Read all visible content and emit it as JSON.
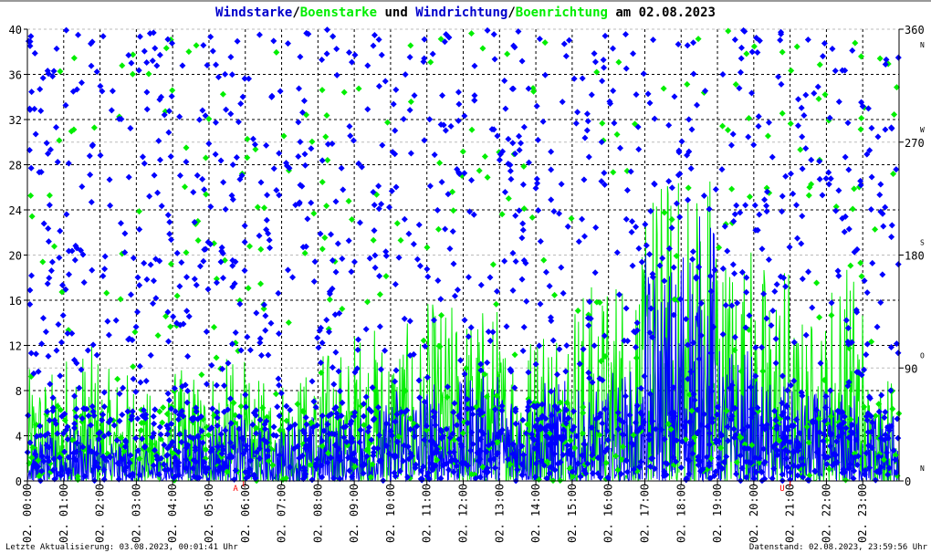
{
  "chart_data": {
    "type": "line",
    "title_parts": [
      {
        "text": "Windstarke",
        "color": "#0000cc"
      },
      {
        "text": "/",
        "color": "#000000"
      },
      {
        "text": "Boenstarke",
        "color": "#00ee00"
      },
      {
        "text": " und ",
        "color": "#000000"
      },
      {
        "text": "Windrichtung",
        "color": "#0000cc"
      },
      {
        "text": "/",
        "color": "#000000"
      },
      {
        "text": "Boenrichtung",
        "color": "#00ee00"
      },
      {
        "text": " am 02.08.2023",
        "color": "#000000"
      }
    ],
    "left_axis": {
      "ylim": [
        0,
        40
      ],
      "ticks": [
        "0",
        "4",
        "8",
        "12",
        "16",
        "20",
        "24",
        "28",
        "32",
        "36",
        "40"
      ]
    },
    "right_axis": {
      "ylim": [
        0,
        360
      ],
      "ticks": [
        "0",
        "90",
        "180",
        "270",
        "360"
      ],
      "compass": [
        "N",
        "O",
        "S",
        "W",
        "N"
      ]
    },
    "x_ticks": [
      "02. 00:00",
      "02. 01:00",
      "02. 02:00",
      "02. 03:00",
      "02. 04:00",
      "02. 05:00",
      "02. 06:00",
      "02. 07:00",
      "02. 08:00",
      "02. 09:00",
      "02. 10:00",
      "02. 11:00",
      "02. 12:00",
      "02. 13:00",
      "02. 14:00",
      "02. 15:00",
      "02. 16:00",
      "02. 17:00",
      "02. 18:00",
      "02. 19:00",
      "02. 20:00",
      "02. 21:00",
      "02. 22:00",
      "02. 23:00"
    ],
    "grid": true,
    "series": [
      {
        "name": "Windstarke",
        "color": "#0000ff",
        "hourly_max": [
          4,
          5,
          4,
          3,
          5,
          6,
          5,
          6,
          6,
          7,
          9,
          9,
          10,
          9,
          9,
          8,
          10,
          20,
          24,
          12,
          9,
          8,
          8,
          7
        ]
      },
      {
        "name": "Boenstarke",
        "color": "#00ee00",
        "hourly_max": [
          10,
          12,
          10,
          8,
          10,
          11,
          9,
          10,
          12,
          14,
          14,
          16,
          16,
          14,
          16,
          18,
          20,
          28,
          30,
          22,
          20,
          15,
          20,
          10
        ]
      },
      {
        "name": "Windrichtung",
        "color": "#0000ff",
        "unit": "deg",
        "type": "scatter"
      },
      {
        "name": "Boenrichtung",
        "color": "#00ee00",
        "unit": "deg",
        "type": "scatter"
      }
    ],
    "markers": [
      {
        "label": "A",
        "time": "05:57",
        "color": "#ff0000"
      },
      {
        "label": "U",
        "time": "21:00",
        "color": "#ff0000"
      }
    ]
  },
  "footer": {
    "left": "Letzte Aktualisierung: 03.08.2023, 00:01:41 Uhr",
    "right": "Datenstand: 02.08.2023, 23:59:56 Uhr"
  }
}
